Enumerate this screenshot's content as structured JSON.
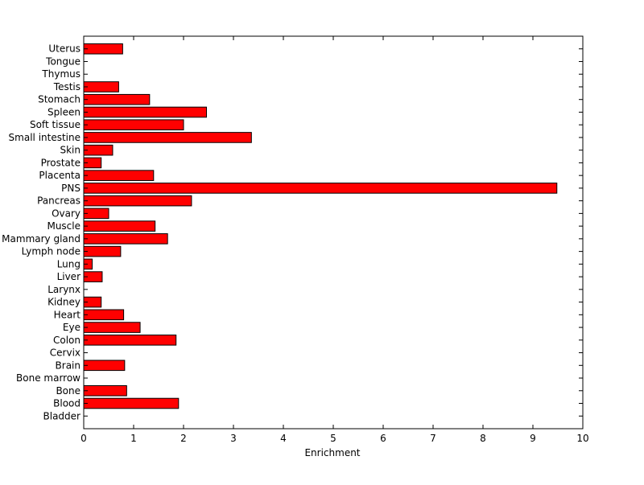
{
  "chart_data": {
    "type": "bar",
    "orientation": "horizontal",
    "title": "",
    "xlabel": "Enrichment",
    "ylabel": "",
    "xlim": [
      0,
      10
    ],
    "xticks": [
      0,
      1,
      2,
      3,
      4,
      5,
      6,
      7,
      8,
      9,
      10
    ],
    "grid": false,
    "legend": "none",
    "bar_color": "#ff0000",
    "bar_edge_color": "#000000",
    "categories": [
      "Bladder",
      "Blood",
      "Bone",
      "Bone marrow",
      "Brain",
      "Cervix",
      "Colon",
      "Eye",
      "Heart",
      "Kidney",
      "Larynx",
      "Liver",
      "Lung",
      "Lymph node",
      "Mammary gland",
      "Muscle",
      "Ovary",
      "Pancreas",
      "PNS",
      "Placenta",
      "Prostate",
      "Skin",
      "Small intestine",
      "Soft tissue",
      "Spleen",
      "Stomach",
      "Testis",
      "Thymus",
      "Tongue",
      "Uterus"
    ],
    "values": [
      0,
      1.9,
      0.86,
      0,
      0.82,
      0,
      1.85,
      1.13,
      0.8,
      0.35,
      0,
      0.37,
      0.17,
      0.74,
      1.68,
      1.43,
      0.5,
      2.16,
      9.48,
      1.4,
      0.35,
      0.58,
      3.36,
      2.0,
      2.46,
      1.32,
      0.7,
      0,
      0,
      0.78
    ]
  }
}
